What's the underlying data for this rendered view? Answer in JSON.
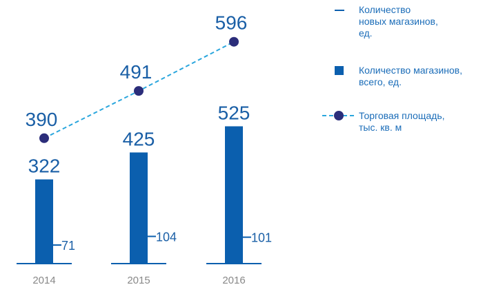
{
  "chart_data": {
    "type": "bar_line",
    "categories": [
      "2014",
      "2015",
      "2016"
    ],
    "series": [
      {
        "name": "Количество новых магазинов, ед.",
        "type": "marker",
        "color": "#0b5fae",
        "values": [
          71,
          104,
          101
        ]
      },
      {
        "name": "Количество магазинов, всего, ед.",
        "type": "bar",
        "color": "#0b5fae",
        "values": [
          322,
          425,
          525
        ]
      },
      {
        "name": "Торговая площадь, тыс. кв. м",
        "type": "line",
        "color": "#2aa6dd",
        "marker_color": "#2b2d7a",
        "values": [
          390,
          491,
          596
        ]
      }
    ]
  }
}
